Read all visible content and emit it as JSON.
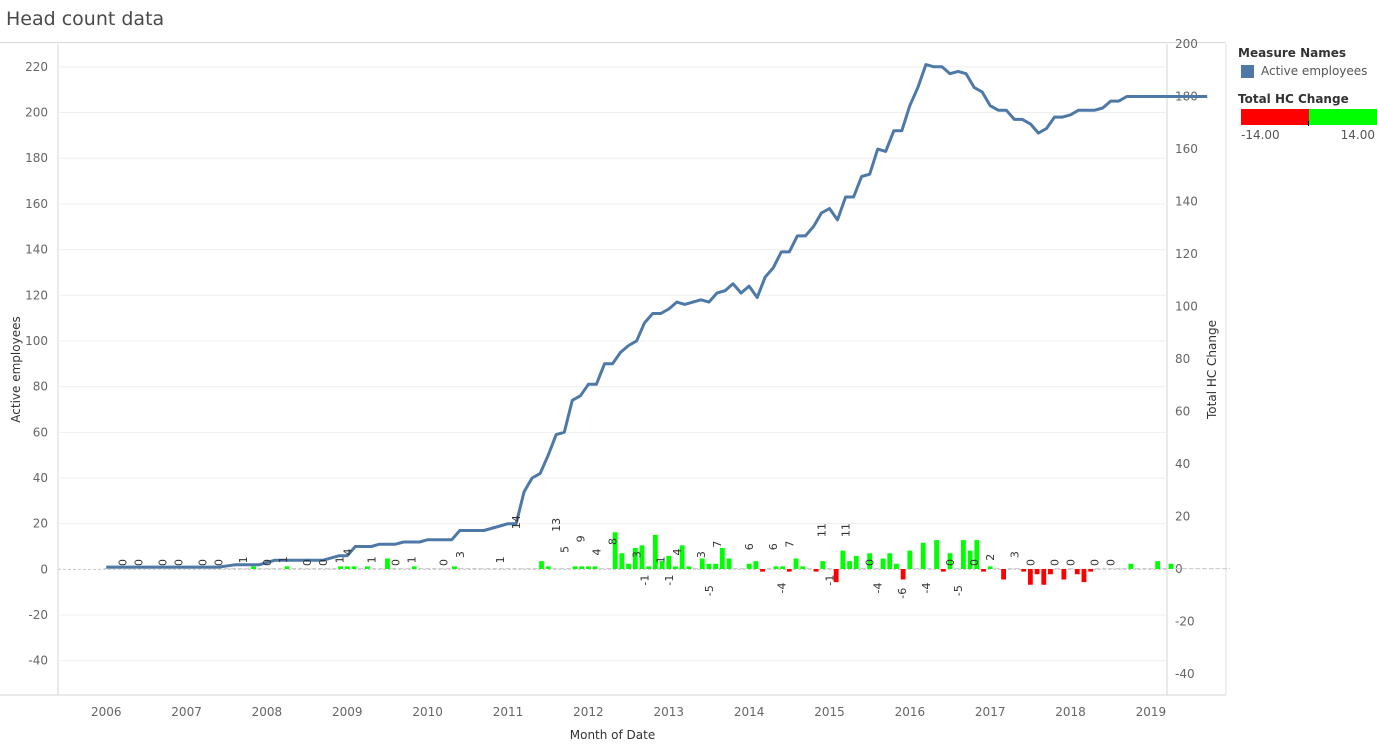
{
  "page": {
    "title": "Head count data"
  },
  "legend": {
    "measure_title": "Measure Names",
    "measure_item": "Active employees",
    "measure_color": "#4e79a7",
    "hc_title": "Total HC Change",
    "hc_min": "-14.00",
    "hc_max": "14.00",
    "neg_color": "#ff0000",
    "pos_color": "#00ff00"
  },
  "chart_data": {
    "type": "line+bar",
    "title": "Head count data",
    "xlabel": "Month of Date",
    "ylabel": "Active employees",
    "y2label": "Total HC Change",
    "x_ticks": [
      "2006",
      "2007",
      "2008",
      "2009",
      "2010",
      "2011",
      "2012",
      "2013",
      "2014",
      "2015",
      "2016",
      "2017",
      "2018",
      "2019"
    ],
    "ylim": [
      -55,
      230
    ],
    "y_ticks": [
      -40,
      -20,
      0,
      20,
      40,
      60,
      80,
      100,
      120,
      140,
      160,
      180,
      200,
      220
    ],
    "y2lim": [
      -48,
      200
    ],
    "y2_ticks": [
      -40,
      -20,
      0,
      20,
      40,
      60,
      80,
      100,
      120,
      140,
      160,
      180,
      200
    ],
    "grid": true,
    "line_series": {
      "name": "Active employees",
      "color": "#4e79a7",
      "points": [
        [
          "2006.0",
          1
        ],
        [
          "2006.5",
          1
        ],
        [
          "2007.0",
          1
        ],
        [
          "2007.4",
          1
        ],
        [
          "2007.6",
          2
        ],
        [
          "2007.9",
          2
        ],
        [
          "2008.0",
          3
        ],
        [
          "2008.1",
          4
        ],
        [
          "2008.5",
          4
        ],
        [
          "2008.7",
          4
        ],
        [
          "2008.8",
          5
        ],
        [
          "2008.9",
          6
        ],
        [
          "2009.0",
          6
        ],
        [
          "2009.1",
          10
        ],
        [
          "2009.3",
          10
        ],
        [
          "2009.4",
          11
        ],
        [
          "2009.6",
          11
        ],
        [
          "2009.7",
          12
        ],
        [
          "2009.9",
          12
        ],
        [
          "2010.0",
          13
        ],
        [
          "2010.3",
          13
        ],
        [
          "2010.4",
          17
        ],
        [
          "2010.7",
          17
        ],
        [
          "2010.9",
          19
        ],
        [
          "2011.0",
          20
        ],
        [
          "2011.1",
          20
        ],
        [
          "2011.2",
          34
        ],
        [
          "2011.3",
          40
        ],
        [
          "2011.4",
          42
        ],
        [
          "2011.5",
          50
        ],
        [
          "2011.6",
          59
        ],
        [
          "2011.7",
          60
        ],
        [
          "2011.8",
          74
        ],
        [
          "2011.9",
          76
        ],
        [
          "2012.0",
          81
        ],
        [
          "2012.1",
          81
        ],
        [
          "2012.2",
          90
        ],
        [
          "2012.3",
          90
        ],
        [
          "2012.4",
          95
        ],
        [
          "2012.5",
          98
        ],
        [
          "2012.6",
          100
        ],
        [
          "2012.7",
          108
        ],
        [
          "2012.8",
          112
        ],
        [
          "2012.9",
          112
        ],
        [
          "2013.0",
          114
        ],
        [
          "2013.1",
          117
        ],
        [
          "2013.2",
          116
        ],
        [
          "2013.3",
          117
        ],
        [
          "2013.4",
          118
        ],
        [
          "2013.5",
          117
        ],
        [
          "2013.6",
          121
        ],
        [
          "2013.7",
          122
        ],
        [
          "2013.8",
          125
        ],
        [
          "2013.9",
          121
        ],
        [
          "2014.0",
          124
        ],
        [
          "2014.1",
          119
        ],
        [
          "2014.2",
          128
        ],
        [
          "2014.3",
          132
        ],
        [
          "2014.4",
          139
        ],
        [
          "2014.5",
          139
        ],
        [
          "2014.6",
          146
        ],
        [
          "2014.7",
          146
        ],
        [
          "2014.8",
          150
        ],
        [
          "2014.9",
          156
        ],
        [
          "2015.0",
          158
        ],
        [
          "2015.1",
          153
        ],
        [
          "2015.2",
          163
        ],
        [
          "2015.3",
          163
        ],
        [
          "2015.4",
          172
        ],
        [
          "2015.5",
          173
        ],
        [
          "2015.6",
          184
        ],
        [
          "2015.7",
          183
        ],
        [
          "2015.8",
          192
        ],
        [
          "2015.9",
          192
        ],
        [
          "2016.0",
          203
        ],
        [
          "2016.1",
          211
        ],
        [
          "2016.2",
          221
        ],
        [
          "2016.3",
          220
        ],
        [
          "2016.4",
          220
        ],
        [
          "2016.5",
          217
        ],
        [
          "2016.6",
          218
        ],
        [
          "2016.7",
          217
        ],
        [
          "2016.8",
          211
        ],
        [
          "2016.9",
          209
        ],
        [
          "2017.0",
          203
        ],
        [
          "2017.1",
          201
        ],
        [
          "2017.2",
          201
        ],
        [
          "2017.3",
          197
        ],
        [
          "2017.4",
          197
        ],
        [
          "2017.5",
          195
        ],
        [
          "2017.6",
          191
        ],
        [
          "2017.7",
          193
        ],
        [
          "2017.8",
          198
        ],
        [
          "2017.9",
          198
        ],
        [
          "2018.0",
          199
        ],
        [
          "2018.1",
          201
        ],
        [
          "2018.2",
          201
        ],
        [
          "2018.3",
          201
        ],
        [
          "2018.4",
          202
        ],
        [
          "2018.5",
          205
        ],
        [
          "2018.6",
          205
        ],
        [
          "2018.7",
          207
        ],
        [
          "2019.0",
          207
        ],
        [
          "2019.5",
          207
        ],
        [
          "2019.7",
          207
        ]
      ]
    },
    "bar_series": {
      "name": "Total HC Change",
      "start": "2006.0",
      "step_months": 1,
      "values": [
        0,
        0,
        0,
        0,
        0,
        0,
        0,
        0,
        0,
        0,
        0,
        0,
        0,
        0,
        0,
        0,
        0,
        0,
        0,
        0,
        0,
        0,
        1,
        0,
        0,
        0,
        0,
        1,
        0,
        0,
        0,
        0,
        0,
        0,
        0,
        1,
        1,
        1,
        0,
        1,
        0,
        0,
        4,
        0,
        0,
        0,
        1,
        0,
        0,
        0,
        0,
        0,
        1,
        0,
        0,
        0,
        0,
        0,
        0,
        0,
        0,
        0,
        0,
        0,
        0,
        3,
        1,
        0,
        0,
        0,
        1,
        1,
        1,
        1,
        0,
        0,
        14,
        6,
        2,
        8,
        9,
        1,
        13,
        3,
        5,
        1,
        9,
        1,
        0,
        4,
        2,
        2,
        8,
        4,
        0,
        0,
        2,
        3,
        -1,
        0,
        1,
        1,
        -1,
        4,
        1,
        0,
        -1,
        3,
        0,
        -5,
        7,
        3,
        5,
        0,
        6,
        0,
        4,
        6,
        2,
        -4,
        7,
        0,
        10,
        0,
        11,
        -1,
        6,
        0,
        11,
        7,
        11,
        -1,
        1,
        0,
        -4,
        0,
        0,
        -1,
        -6,
        -2,
        -6,
        -2,
        0,
        -4,
        0,
        -2,
        -5,
        -1,
        0,
        0,
        0,
        0,
        0,
        2,
        0,
        0,
        0,
        3,
        0,
        2,
        0,
        0,
        0,
        0,
        0,
        0,
        0,
        0,
        0,
        0,
        0,
        0,
        0,
        0,
        0,
        0,
        0,
        0,
        0,
        0
      ],
      "labels": [
        [
          "2006.2",
          "0"
        ],
        [
          "2006.4",
          "0"
        ],
        [
          "2006.7",
          "0"
        ],
        [
          "2006.9",
          "0"
        ],
        [
          "2007.2",
          "0"
        ],
        [
          "2007.4",
          "0"
        ],
        [
          "2007.7",
          "1"
        ],
        [
          "2008.0",
          "0"
        ],
        [
          "2008.2",
          "1"
        ],
        [
          "2008.5",
          "0"
        ],
        [
          "2008.7",
          "0"
        ],
        [
          "2008.9",
          "1"
        ],
        [
          "2009.0",
          "4"
        ],
        [
          "2009.3",
          "1"
        ],
        [
          "2009.6",
          "0"
        ],
        [
          "2009.8",
          "1"
        ],
        [
          "2010.2",
          "0"
        ],
        [
          "2010.4",
          "3"
        ],
        [
          "2010.9",
          "1"
        ],
        [
          "2011.1",
          "14"
        ],
        [
          "2011.6",
          "13"
        ],
        [
          "2011.7",
          "5"
        ],
        [
          "2011.9",
          "9"
        ],
        [
          "2012.1",
          "4"
        ],
        [
          "2012.3",
          "8"
        ],
        [
          "2012.6",
          "3"
        ],
        [
          "2012.7",
          "-1"
        ],
        [
          "2012.9",
          "1"
        ],
        [
          "2013.0",
          "-1"
        ],
        [
          "2013.1",
          "4"
        ],
        [
          "2013.4",
          "3"
        ],
        [
          "2013.5",
          "-5"
        ],
        [
          "2013.6",
          "7"
        ],
        [
          "2014.0",
          "6"
        ],
        [
          "2014.3",
          "6"
        ],
        [
          "2014.4",
          "-4"
        ],
        [
          "2014.5",
          "7"
        ],
        [
          "2014.9",
          "11"
        ],
        [
          "2015.0",
          "-1"
        ],
        [
          "2015.2",
          "11"
        ],
        [
          "2015.5",
          "0"
        ],
        [
          "2015.6",
          "-4"
        ],
        [
          "2015.9",
          "-6"
        ],
        [
          "2016.2",
          "-4"
        ],
        [
          "2016.5",
          "0"
        ],
        [
          "2016.6",
          "-5"
        ],
        [
          "2016.8",
          "0"
        ],
        [
          "2017.0",
          "2"
        ],
        [
          "2017.3",
          "3"
        ],
        [
          "2017.5",
          "0"
        ],
        [
          "2017.8",
          "0"
        ],
        [
          "2018.0",
          "0"
        ],
        [
          "2018.3",
          "0"
        ],
        [
          "2018.5",
          "0"
        ]
      ]
    }
  }
}
